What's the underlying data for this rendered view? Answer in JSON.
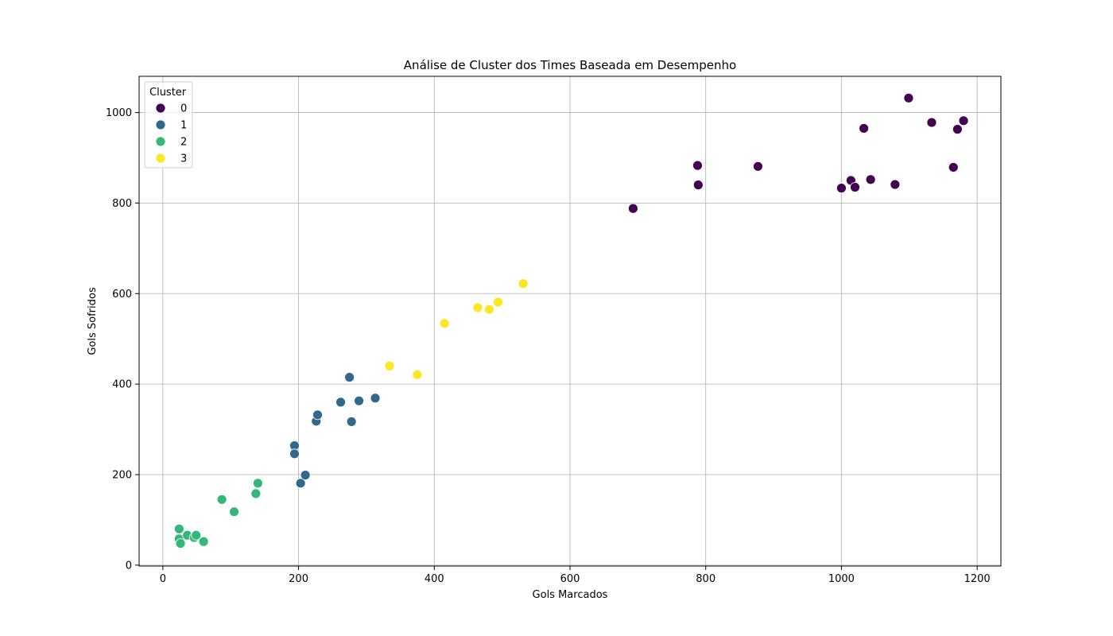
{
  "chart_data": {
    "type": "scatter",
    "title": "Análise de Cluster dos Times Baseada em Desempenho",
    "xlabel": "Gols Marcados",
    "ylabel": "Gols Sofridos",
    "xlim": [
      -35,
      1235
    ],
    "ylim": [
      -2,
      1080
    ],
    "xticks": [
      0,
      200,
      400,
      600,
      800,
      1000,
      1200
    ],
    "yticks": [
      0,
      200,
      400,
      600,
      800,
      1000
    ],
    "grid": true,
    "legend": {
      "title": "Cluster",
      "placement": "top-left"
    },
    "series": [
      {
        "name": "0",
        "color": "#440154",
        "points": [
          [
            693,
            788
          ],
          [
            788,
            883
          ],
          [
            789,
            840
          ],
          [
            877,
            881
          ],
          [
            1000,
            833
          ],
          [
            1014,
            850
          ],
          [
            1020,
            835
          ],
          [
            1033,
            965
          ],
          [
            1043,
            852
          ],
          [
            1079,
            841
          ],
          [
            1099,
            1032
          ],
          [
            1133,
            978
          ],
          [
            1165,
            879
          ],
          [
            1171,
            963
          ],
          [
            1180,
            982
          ]
        ]
      },
      {
        "name": "1",
        "color": "#31688e",
        "points": [
          [
            194,
            264
          ],
          [
            194,
            246
          ],
          [
            203,
            181
          ],
          [
            210,
            199
          ],
          [
            226,
            318
          ],
          [
            228,
            332
          ],
          [
            262,
            360
          ],
          [
            275,
            415
          ],
          [
            278,
            317
          ],
          [
            289,
            363
          ],
          [
            313,
            369
          ]
        ]
      },
      {
        "name": "2",
        "color": "#35b779",
        "points": [
          [
            24,
            80
          ],
          [
            24,
            58
          ],
          [
            26,
            48
          ],
          [
            36,
            66
          ],
          [
            46,
            61
          ],
          [
            49,
            66
          ],
          [
            60,
            52
          ],
          [
            87,
            145
          ],
          [
            105,
            118
          ],
          [
            137,
            158
          ],
          [
            140,
            181
          ]
        ]
      },
      {
        "name": "3",
        "color": "#fde725",
        "points": [
          [
            334,
            440
          ],
          [
            375,
            421
          ],
          [
            415,
            534
          ],
          [
            464,
            569
          ],
          [
            481,
            565
          ],
          [
            494,
            581
          ],
          [
            531,
            622
          ]
        ]
      }
    ]
  }
}
